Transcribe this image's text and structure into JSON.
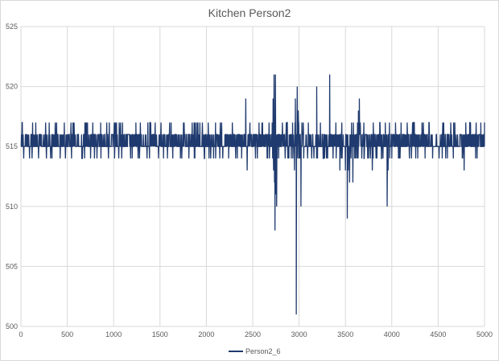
{
  "chart_data": {
    "type": "line",
    "title": "Kitchen Person2",
    "xlabel": "",
    "ylabel": "",
    "xlim": [
      0,
      5000
    ],
    "ylim": [
      500,
      525
    ],
    "x_ticks": [
      0,
      500,
      1000,
      1500,
      2000,
      2500,
      3000,
      3500,
      4000,
      4500,
      5000
    ],
    "y_ticks": [
      500,
      505,
      510,
      515,
      520,
      525
    ],
    "grid": true,
    "legend": {
      "position": "bottom",
      "entries": [
        "Person2_6"
      ]
    },
    "series": [
      {
        "name": "Person2_6",
        "color": "#1f3a6e",
        "baseline": 515,
        "points": [
          [
            0,
            515
          ],
          [
            15,
            517
          ],
          [
            30,
            514
          ],
          [
            60,
            516
          ],
          [
            90,
            515
          ],
          [
            120,
            514
          ],
          [
            160,
            517
          ],
          [
            200,
            516
          ],
          [
            260,
            515
          ],
          [
            320,
            514
          ],
          [
            370,
            517
          ],
          [
            420,
            516
          ],
          [
            480,
            514
          ],
          [
            540,
            517
          ],
          [
            600,
            515
          ],
          [
            660,
            514
          ],
          [
            700,
            517
          ],
          [
            760,
            516
          ],
          [
            820,
            514
          ],
          [
            860,
            517
          ],
          [
            920,
            515
          ],
          [
            980,
            516
          ],
          [
            1010,
            514
          ],
          [
            1060,
            517
          ],
          [
            1110,
            515
          ],
          [
            1150,
            516
          ],
          [
            1200,
            514
          ],
          [
            1240,
            517
          ],
          [
            1300,
            516
          ],
          [
            1360,
            514
          ],
          [
            1400,
            517
          ],
          [
            1460,
            515
          ],
          [
            1520,
            516
          ],
          [
            1580,
            514
          ],
          [
            1620,
            517
          ],
          [
            1680,
            516
          ],
          [
            1720,
            514
          ],
          [
            1760,
            517
          ],
          [
            1820,
            516
          ],
          [
            1870,
            514
          ],
          [
            1900,
            517
          ],
          [
            1960,
            516
          ],
          [
            2000,
            515
          ],
          [
            2020,
            517
          ],
          [
            2060,
            516
          ],
          [
            2100,
            514
          ],
          [
            2150,
            517
          ],
          [
            2200,
            516
          ],
          [
            2240,
            514
          ],
          [
            2280,
            517
          ],
          [
            2340,
            515
          ],
          [
            2380,
            514
          ],
          [
            2410,
            516
          ],
          [
            2425,
            519
          ],
          [
            2440,
            513
          ],
          [
            2470,
            517
          ],
          [
            2500,
            516
          ],
          [
            2550,
            514
          ],
          [
            2600,
            517
          ],
          [
            2640,
            516
          ],
          [
            2680,
            514
          ],
          [
            2700,
            516
          ],
          [
            2710,
            517
          ],
          [
            2715,
            514
          ],
          [
            2720,
            519
          ],
          [
            2725,
            513
          ],
          [
            2730,
            521
          ],
          [
            2735,
            512
          ],
          [
            2740,
            508
          ],
          [
            2745,
            521
          ],
          [
            2750,
            511
          ],
          [
            2758,
            510
          ],
          [
            2765,
            516
          ],
          [
            2780,
            514
          ],
          [
            2800,
            516
          ],
          [
            2820,
            517
          ],
          [
            2850,
            514
          ],
          [
            2870,
            517
          ],
          [
            2890,
            514
          ],
          [
            2910,
            516
          ],
          [
            2930,
            517
          ],
          [
            2950,
            513
          ],
          [
            2960,
            519
          ],
          [
            2970,
            501
          ],
          [
            2975,
            516
          ],
          [
            2980,
            520
          ],
          [
            2985,
            514
          ],
          [
            2990,
            518
          ],
          [
            3000,
            514
          ],
          [
            3010,
            516
          ],
          [
            3020,
            510
          ],
          [
            3030,
            517
          ],
          [
            3050,
            514
          ],
          [
            3080,
            516
          ],
          [
            3100,
            517
          ],
          [
            3130,
            515
          ],
          [
            3160,
            514
          ],
          [
            3180,
            516
          ],
          [
            3190,
            520
          ],
          [
            3200,
            515
          ],
          [
            3230,
            517
          ],
          [
            3260,
            514
          ],
          [
            3290,
            516
          ],
          [
            3310,
            515
          ],
          [
            3330,
            521
          ],
          [
            3345,
            515
          ],
          [
            3370,
            516
          ],
          [
            3400,
            514
          ],
          [
            3420,
            515
          ],
          [
            3440,
            513
          ],
          [
            3470,
            515
          ],
          [
            3500,
            513
          ],
          [
            3510,
            515
          ],
          [
            3520,
            509
          ],
          [
            3530,
            513
          ],
          [
            3545,
            512
          ],
          [
            3560,
            514
          ],
          [
            3580,
            512
          ],
          [
            3600,
            514
          ],
          [
            3615,
            516
          ],
          [
            3630,
            517
          ],
          [
            3640,
            518
          ],
          [
            3650,
            519
          ],
          [
            3660,
            517
          ],
          [
            3670,
            515
          ],
          [
            3690,
            516
          ],
          [
            3700,
            514
          ],
          [
            3720,
            516
          ],
          [
            3740,
            514
          ],
          [
            3760,
            515
          ],
          [
            3790,
            513
          ],
          [
            3800,
            517
          ],
          [
            3830,
            514
          ],
          [
            3860,
            516
          ],
          [
            3870,
            517
          ],
          [
            3890,
            514
          ],
          [
            3910,
            516
          ],
          [
            3930,
            517
          ],
          [
            3950,
            510
          ],
          [
            3960,
            513
          ],
          [
            3975,
            517
          ],
          [
            4000,
            514
          ],
          [
            4020,
            516
          ],
          [
            4040,
            517
          ],
          [
            4060,
            515
          ],
          [
            4080,
            514
          ],
          [
            4100,
            517
          ],
          [
            4130,
            516
          ],
          [
            4160,
            515
          ],
          [
            4200,
            516
          ],
          [
            4240,
            517
          ],
          [
            4280,
            514
          ],
          [
            4320,
            516
          ],
          [
            4360,
            515
          ],
          [
            4400,
            517
          ],
          [
            4440,
            514
          ],
          [
            4480,
            516
          ],
          [
            4520,
            515
          ],
          [
            4560,
            517
          ],
          [
            4600,
            514
          ],
          [
            4640,
            516
          ],
          [
            4680,
            517
          ],
          [
            4720,
            515
          ],
          [
            4760,
            514
          ],
          [
            4780,
            513
          ],
          [
            4800,
            516
          ],
          [
            4840,
            517
          ],
          [
            4880,
            515
          ],
          [
            4920,
            514
          ],
          [
            4960,
            517
          ],
          [
            4990,
            515
          ],
          [
            5000,
            517
          ]
        ]
      }
    ]
  }
}
